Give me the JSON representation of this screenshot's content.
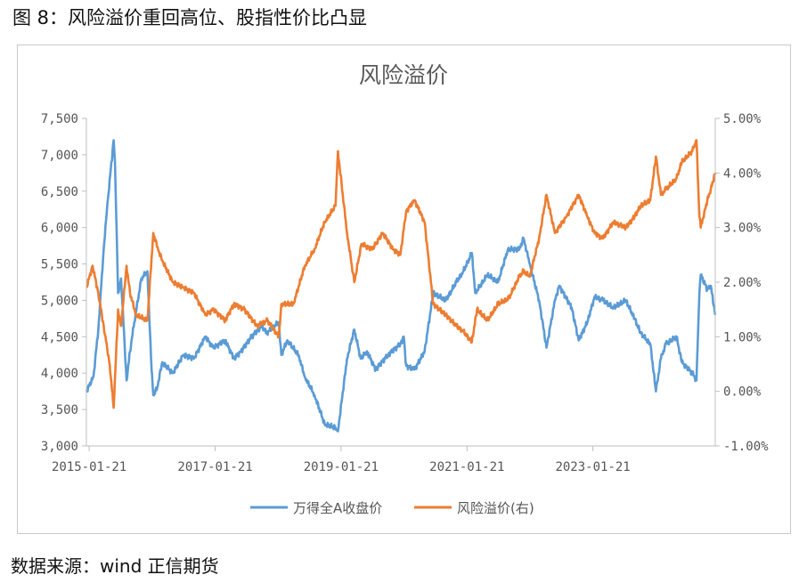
{
  "figure_title": "图 8：风险溢价重回高位、股指性价比凸显",
  "source_note": "数据来源：wind 正信期货",
  "chart_data": {
    "type": "line",
    "title": "风险溢价",
    "x_ticks": [
      "2015-01-21",
      "2017-01-21",
      "2019-01-21",
      "2021-01-21",
      "2023-01-21"
    ],
    "x_range": [
      "2015-01-05",
      "2024-12-31"
    ],
    "y_left": {
      "ticks": [
        "3,000",
        "3,500",
        "4,000",
        "4,500",
        "5,000",
        "5,500",
        "6,000",
        "6,500",
        "7,000",
        "7,500"
      ],
      "range": [
        3000,
        7500
      ]
    },
    "y_right": {
      "ticks": [
        "-1.00%",
        "0.00%",
        "1.00%",
        "2.00%",
        "3.00%",
        "4.00%",
        "5.00%"
      ],
      "range": [
        -1.0,
        5.0
      ]
    },
    "legend_position": "bottom",
    "series": [
      {
        "name": "万得全A收盘价",
        "axis": "left",
        "color": "#5B9BD5",
        "points": [
          [
            "2015-01-05",
            3750
          ],
          [
            "2015-02-15",
            3950
          ],
          [
            "2015-03-15",
            4600
          ],
          [
            "2015-04-15",
            5700
          ],
          [
            "2015-05-10",
            6400
          ],
          [
            "2015-06-12",
            7200
          ],
          [
            "2015-06-20",
            6900
          ],
          [
            "2015-07-08",
            5100
          ],
          [
            "2015-07-25",
            5300
          ],
          [
            "2015-08-26",
            3900
          ],
          [
            "2015-09-15",
            4300
          ],
          [
            "2015-10-10",
            4700
          ],
          [
            "2015-11-20",
            5300
          ],
          [
            "2015-12-25",
            5400
          ],
          [
            "2016-01-15",
            4200
          ],
          [
            "2016-01-28",
            3700
          ],
          [
            "2016-02-20",
            3800
          ],
          [
            "2016-03-20",
            4150
          ],
          [
            "2016-05-20",
            4000
          ],
          [
            "2016-07-20",
            4250
          ],
          [
            "2016-09-20",
            4200
          ],
          [
            "2016-11-25",
            4500
          ],
          [
            "2017-01-10",
            4350
          ],
          [
            "2017-03-20",
            4450
          ],
          [
            "2017-05-10",
            4200
          ],
          [
            "2017-06-20",
            4300
          ],
          [
            "2017-08-20",
            4500
          ],
          [
            "2017-10-20",
            4650
          ],
          [
            "2017-11-15",
            4550
          ],
          [
            "2018-01-25",
            4700
          ],
          [
            "2018-02-09",
            4250
          ],
          [
            "2018-03-15",
            4450
          ],
          [
            "2018-05-20",
            4250
          ],
          [
            "2018-06-25",
            3950
          ],
          [
            "2018-08-20",
            3700
          ],
          [
            "2018-10-18",
            3300
          ],
          [
            "2018-12-20",
            3250
          ],
          [
            "2019-01-03",
            3200
          ],
          [
            "2019-02-25",
            4200
          ],
          [
            "2019-04-08",
            4600
          ],
          [
            "2019-05-15",
            4200
          ],
          [
            "2019-06-20",
            4300
          ],
          [
            "2019-08-10",
            4050
          ],
          [
            "2019-10-20",
            4250
          ],
          [
            "2019-12-31",
            4400
          ],
          [
            "2020-01-20",
            4500
          ],
          [
            "2020-02-03",
            4100
          ],
          [
            "2020-03-23",
            4050
          ],
          [
            "2020-05-20",
            4300
          ],
          [
            "2020-07-09",
            5100
          ],
          [
            "2020-09-20",
            5000
          ],
          [
            "2020-11-20",
            5250
          ],
          [
            "2020-12-31",
            5400
          ],
          [
            "2021-02-18",
            5650
          ],
          [
            "2021-03-10",
            5100
          ],
          [
            "2021-05-20",
            5350
          ],
          [
            "2021-07-20",
            5250
          ],
          [
            "2021-09-15",
            5700
          ],
          [
            "2021-11-20",
            5700
          ],
          [
            "2021-12-15",
            5850
          ],
          [
            "2022-01-20",
            5500
          ],
          [
            "2022-03-15",
            5000
          ],
          [
            "2022-04-27",
            4350
          ],
          [
            "2022-06-15",
            5000
          ],
          [
            "2022-07-10",
            5200
          ],
          [
            "2022-09-20",
            4900
          ],
          [
            "2022-10-31",
            4450
          ],
          [
            "2022-12-20",
            4700
          ],
          [
            "2023-01-31",
            5050
          ],
          [
            "2023-03-20",
            5000
          ],
          [
            "2023-05-20",
            4900
          ],
          [
            "2023-07-31",
            5000
          ],
          [
            "2023-09-20",
            4750
          ],
          [
            "2023-10-25",
            4550
          ],
          [
            "2023-12-20",
            4400
          ],
          [
            "2024-01-22",
            3750
          ],
          [
            "2024-02-20",
            4200
          ],
          [
            "2024-03-20",
            4400
          ],
          [
            "2024-05-20",
            4500
          ],
          [
            "2024-06-20",
            4150
          ],
          [
            "2024-08-20",
            4000
          ],
          [
            "2024-09-13",
            3900
          ],
          [
            "2024-09-30",
            5100
          ],
          [
            "2024-10-08",
            5350
          ],
          [
            "2024-11-15",
            5150
          ],
          [
            "2024-12-05",
            5200
          ],
          [
            "2024-12-31",
            4800
          ]
        ]
      },
      {
        "name": "风险溢价(右)",
        "axis": "right",
        "color": "#ED7D31",
        "points": [
          [
            "2015-01-05",
            1.9
          ],
          [
            "2015-02-10",
            2.3
          ],
          [
            "2015-03-15",
            1.8
          ],
          [
            "2015-04-15",
            1.2
          ],
          [
            "2015-05-20",
            0.5
          ],
          [
            "2015-06-12",
            -0.3
          ],
          [
            "2015-07-08",
            1.5
          ],
          [
            "2015-07-25",
            1.2
          ],
          [
            "2015-08-26",
            2.3
          ],
          [
            "2015-09-15",
            1.8
          ],
          [
            "2015-10-20",
            1.4
          ],
          [
            "2015-12-25",
            1.3
          ],
          [
            "2016-01-28",
            2.9
          ],
          [
            "2016-02-25",
            2.6
          ],
          [
            "2016-03-20",
            2.4
          ],
          [
            "2016-05-20",
            2.0
          ],
          [
            "2016-07-20",
            1.9
          ],
          [
            "2016-09-20",
            1.8
          ],
          [
            "2016-11-25",
            1.4
          ],
          [
            "2017-01-10",
            1.5
          ],
          [
            "2017-03-20",
            1.3
          ],
          [
            "2017-05-10",
            1.6
          ],
          [
            "2017-07-10",
            1.5
          ],
          [
            "2017-09-20",
            1.2
          ],
          [
            "2017-11-20",
            1.3
          ],
          [
            "2018-01-25",
            1.0
          ],
          [
            "2018-02-09",
            1.6
          ],
          [
            "2018-04-20",
            1.6
          ],
          [
            "2018-06-25",
            2.3
          ],
          [
            "2018-08-20",
            2.6
          ],
          [
            "2018-10-18",
            3.1
          ],
          [
            "2018-12-20",
            3.4
          ],
          [
            "2019-01-03",
            4.4
          ],
          [
            "2019-02-25",
            2.9
          ],
          [
            "2019-04-08",
            2.0
          ],
          [
            "2019-05-20",
            2.7
          ],
          [
            "2019-07-20",
            2.6
          ],
          [
            "2019-09-20",
            2.9
          ],
          [
            "2019-11-20",
            2.6
          ],
          [
            "2019-12-31",
            2.5
          ],
          [
            "2020-02-03",
            3.3
          ],
          [
            "2020-03-23",
            3.5
          ],
          [
            "2020-05-20",
            3.1
          ],
          [
            "2020-07-09",
            1.6
          ],
          [
            "2020-09-20",
            1.4
          ],
          [
            "2020-11-20",
            1.2
          ],
          [
            "2020-12-31",
            1.1
          ],
          [
            "2021-02-18",
            0.9
          ],
          [
            "2021-03-20",
            1.5
          ],
          [
            "2021-05-20",
            1.3
          ],
          [
            "2021-07-20",
            1.6
          ],
          [
            "2021-09-20",
            1.7
          ],
          [
            "2021-11-20",
            2.1
          ],
          [
            "2021-12-15",
            2.2
          ],
          [
            "2022-01-20",
            2.1
          ],
          [
            "2022-03-15",
            2.8
          ],
          [
            "2022-04-27",
            3.6
          ],
          [
            "2022-06-15",
            2.9
          ],
          [
            "2022-08-20",
            3.2
          ],
          [
            "2022-10-31",
            3.6
          ],
          [
            "2022-12-20",
            3.2
          ],
          [
            "2023-01-31",
            2.9
          ],
          [
            "2023-03-20",
            2.8
          ],
          [
            "2023-05-20",
            3.1
          ],
          [
            "2023-07-31",
            3.0
          ],
          [
            "2023-09-20",
            3.2
          ],
          [
            "2023-10-25",
            3.4
          ],
          [
            "2023-12-20",
            3.5
          ],
          [
            "2024-01-22",
            4.3
          ],
          [
            "2024-02-20",
            3.6
          ],
          [
            "2024-03-20",
            3.7
          ],
          [
            "2024-05-20",
            3.9
          ],
          [
            "2024-06-20",
            4.2
          ],
          [
            "2024-08-20",
            4.4
          ],
          [
            "2024-09-13",
            4.6
          ],
          [
            "2024-09-30",
            3.2
          ],
          [
            "2024-10-08",
            3.0
          ],
          [
            "2024-11-15",
            3.5
          ],
          [
            "2024-12-05",
            3.7
          ],
          [
            "2024-12-31",
            4.0
          ]
        ]
      }
    ]
  }
}
